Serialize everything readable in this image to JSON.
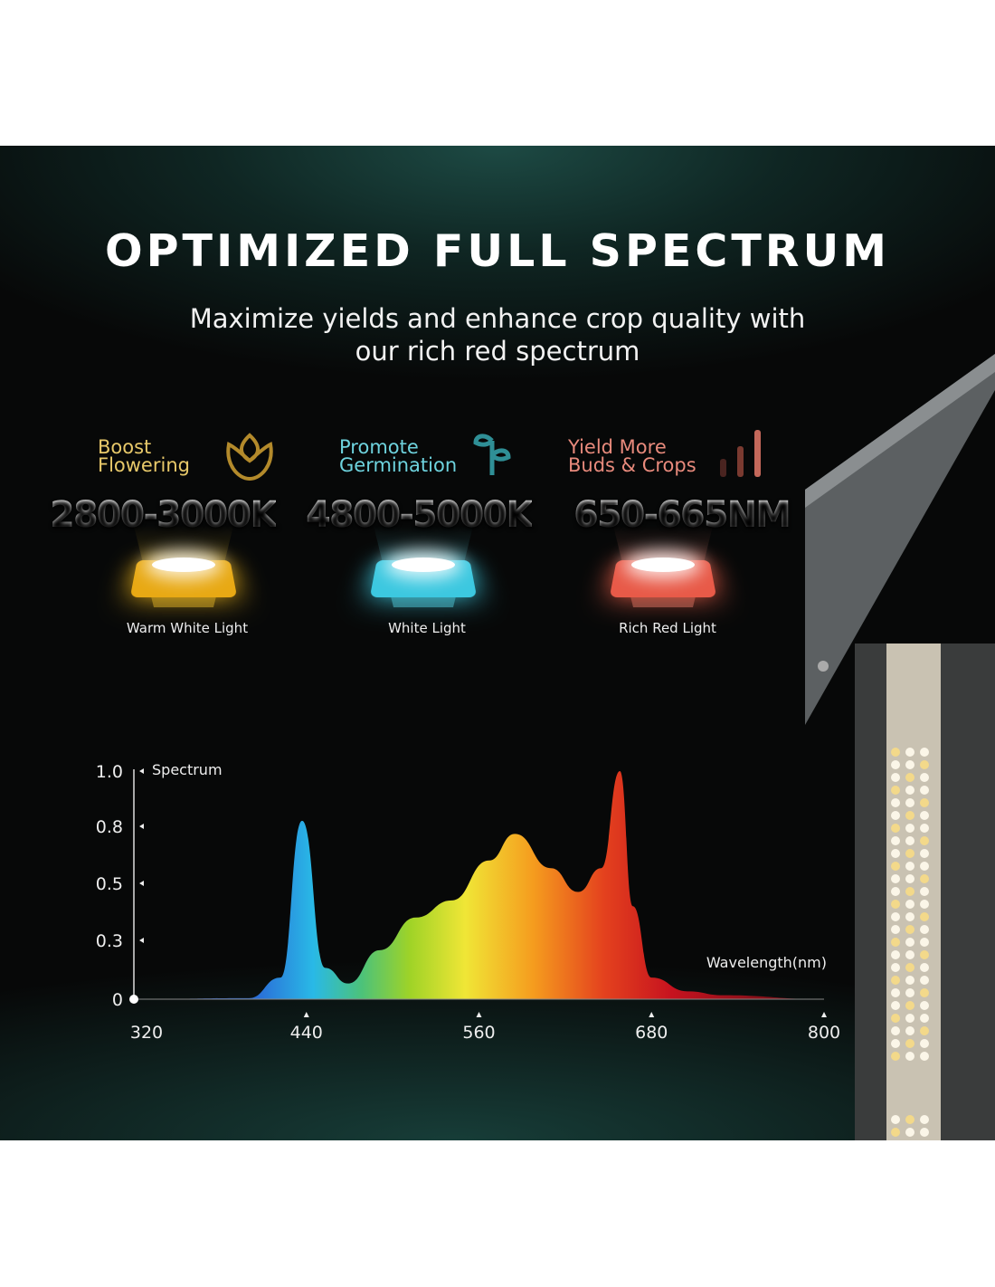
{
  "title": "OPTIMIZED FULL SPECTRUM",
  "subtitle": [
    "Maximize yields and enhance crop quality with",
    "our rich red spectrum"
  ],
  "features": [
    {
      "line1": "Boost",
      "line2": "Flowering",
      "value": "2800-3000K",
      "light": "Warm White Light",
      "color": "#e8c96a",
      "led": "#f2b91c",
      "icon": "flower-icon"
    },
    {
      "line1": "Promote",
      "line2": "Germination",
      "value": "4800-5000K",
      "light": "White Light",
      "color": "#6ed3de",
      "led": "#3fd0e8",
      "icon": "sprout-icon"
    },
    {
      "line1": "Yield More",
      "line2": "Buds & Crops",
      "value": "650-665NM",
      "light": "Rich Red Light",
      "color": "#e88a7c",
      "led": "#f0604a",
      "icon": "bar-chart-icon"
    }
  ],
  "chart_data": {
    "type": "area",
    "ylabel": "Spectrum",
    "xlabel": "Wavelength(nm)",
    "xticks": [
      "320",
      "440",
      "560",
      "680",
      "800"
    ],
    "yticks": [
      "1.0",
      "0.8",
      "0.5",
      "0.3",
      "0"
    ],
    "xlim": [
      320,
      800
    ],
    "ylim": [
      0,
      1.0
    ],
    "x": [
      320,
      400,
      422,
      437,
      453,
      469,
      491,
      516,
      541,
      567,
      585,
      610,
      629,
      645,
      658,
      667,
      680,
      705,
      730,
      800
    ],
    "y": [
      0,
      0.005,
      0.11,
      0.82,
      0.16,
      0.08,
      0.25,
      0.38,
      0.44,
      0.62,
      0.76,
      0.58,
      0.47,
      0.58,
      1.0,
      0.42,
      0.11,
      0.04,
      0.02,
      0
    ],
    "grid": false,
    "fill": "wavelength-rainbow-gradient"
  }
}
